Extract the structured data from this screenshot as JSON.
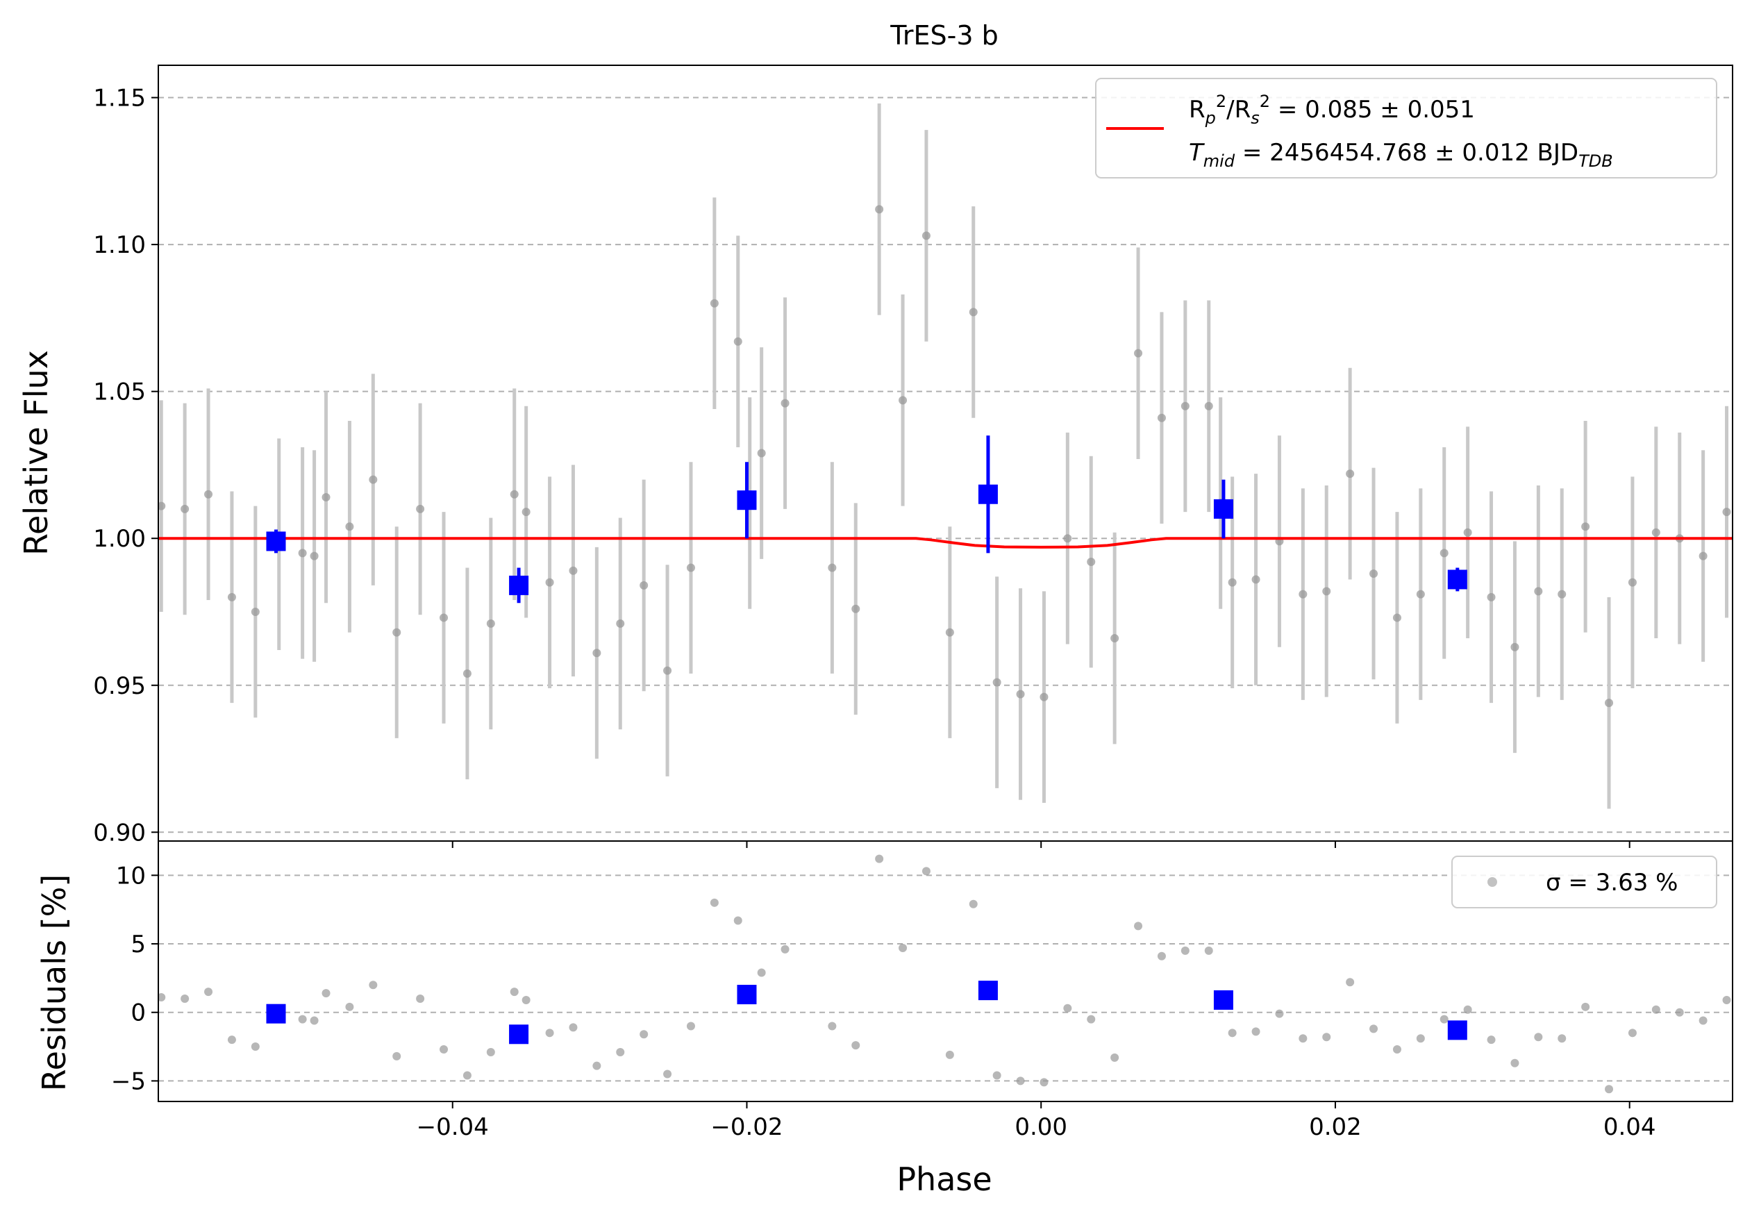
{
  "chart_data": {
    "type": "scatter",
    "title": "TrES-3 b",
    "top_panel": {
      "ylabel": "Relative Flux",
      "ylim": [
        0.897,
        1.161
      ],
      "yticks": [
        0.9,
        0.95,
        1.0,
        1.05,
        1.1,
        1.15
      ],
      "ytick_labels": [
        "0.90",
        "0.95",
        "1.00",
        "1.05",
        "1.10",
        "1.15"
      ],
      "grid": "horizontal dashed",
      "legend": {
        "placement": "top-right",
        "line1": "R_p^2/R_s^2 = 0.085 ± 0.051",
        "line2": "T_mid = 2456454.768 ± 0.012 BJD_TDB",
        "line_color": "#ff0000"
      }
    },
    "bottom_panel": {
      "ylabel": "Residuals [%]",
      "ylim": [
        -6.5,
        12.5
      ],
      "yticks": [
        -5,
        0,
        5,
        10
      ],
      "ytick_labels": [
        "−5",
        "0",
        "5",
        "10"
      ],
      "legend": {
        "placement": "top-right",
        "label": "σ = 3.63 %"
      }
    },
    "xlabel": "Phase",
    "xlim": [
      -0.06,
      0.047
    ],
    "xticks": [
      -0.04,
      -0.02,
      0.0,
      0.02,
      0.04
    ],
    "xtick_labels": [
      "−0.04",
      "−0.02",
      "0.00",
      "0.02",
      "0.04"
    ],
    "colors": {
      "raw": "#999999",
      "raw_err": "#c8c8c8",
      "binned": "#0000ff",
      "model": "#ff0000",
      "grid": "#b0b0b0"
    },
    "raw_points": [
      {
        "x": -0.0598,
        "y": 1.011,
        "e": 0.036
      },
      {
        "x": -0.0582,
        "y": 1.01,
        "e": 0.036
      },
      {
        "x": -0.0566,
        "y": 1.015,
        "e": 0.036
      },
      {
        "x": -0.055,
        "y": 0.98,
        "e": 0.036
      },
      {
        "x": -0.0534,
        "y": 0.975,
        "e": 0.036
      },
      {
        "x": -0.0518,
        "y": 0.998,
        "e": 0.036
      },
      {
        "x": -0.0502,
        "y": 0.995,
        "e": 0.036
      },
      {
        "x": -0.0494,
        "y": 0.994,
        "e": 0.036
      },
      {
        "x": -0.0486,
        "y": 1.014,
        "e": 0.036
      },
      {
        "x": -0.047,
        "y": 1.004,
        "e": 0.036
      },
      {
        "x": -0.0454,
        "y": 1.02,
        "e": 0.036
      },
      {
        "x": -0.0438,
        "y": 0.968,
        "e": 0.036
      },
      {
        "x": -0.0422,
        "y": 1.01,
        "e": 0.036
      },
      {
        "x": -0.0406,
        "y": 0.973,
        "e": 0.036
      },
      {
        "x": -0.039,
        "y": 0.954,
        "e": 0.036
      },
      {
        "x": -0.0374,
        "y": 0.971,
        "e": 0.036
      },
      {
        "x": -0.0358,
        "y": 1.015,
        "e": 0.036
      },
      {
        "x": -0.035,
        "y": 1.009,
        "e": 0.036
      },
      {
        "x": -0.0334,
        "y": 0.985,
        "e": 0.036
      },
      {
        "x": -0.0318,
        "y": 0.989,
        "e": 0.036
      },
      {
        "x": -0.0302,
        "y": 0.961,
        "e": 0.036
      },
      {
        "x": -0.0286,
        "y": 0.971,
        "e": 0.036
      },
      {
        "x": -0.027,
        "y": 0.984,
        "e": 0.036
      },
      {
        "x": -0.0254,
        "y": 0.955,
        "e": 0.036
      },
      {
        "x": -0.0238,
        "y": 0.99,
        "e": 0.036
      },
      {
        "x": -0.0222,
        "y": 1.08,
        "e": 0.036
      },
      {
        "x": -0.0206,
        "y": 1.067,
        "e": 0.036
      },
      {
        "x": -0.0198,
        "y": 1.012,
        "e": 0.036
      },
      {
        "x": -0.019,
        "y": 1.029,
        "e": 0.036
      },
      {
        "x": -0.0174,
        "y": 1.046,
        "e": 0.036
      },
      {
        "x": -0.0142,
        "y": 0.99,
        "e": 0.036
      },
      {
        "x": -0.0126,
        "y": 0.976,
        "e": 0.036
      },
      {
        "x": -0.011,
        "y": 1.112,
        "e": 0.036
      },
      {
        "x": -0.0094,
        "y": 1.047,
        "e": 0.036
      },
      {
        "x": -0.0078,
        "y": 1.103,
        "e": 0.036
      },
      {
        "x": -0.0062,
        "y": 0.968,
        "e": 0.036
      },
      {
        "x": -0.0046,
        "y": 1.077,
        "e": 0.036
      },
      {
        "x": -0.003,
        "y": 0.951,
        "e": 0.036
      },
      {
        "x": -0.0014,
        "y": 0.947,
        "e": 0.036
      },
      {
        "x": 0.0002,
        "y": 0.946,
        "e": 0.036
      },
      {
        "x": 0.0018,
        "y": 1.0,
        "e": 0.036
      },
      {
        "x": 0.0034,
        "y": 0.992,
        "e": 0.036
      },
      {
        "x": 0.005,
        "y": 0.966,
        "e": 0.036
      },
      {
        "x": 0.0066,
        "y": 1.063,
        "e": 0.036
      },
      {
        "x": 0.0082,
        "y": 1.041,
        "e": 0.036
      },
      {
        "x": 0.0098,
        "y": 1.045,
        "e": 0.036
      },
      {
        "x": 0.0114,
        "y": 1.045,
        "e": 0.036
      },
      {
        "x": 0.0122,
        "y": 1.012,
        "e": 0.036
      },
      {
        "x": 0.013,
        "y": 0.985,
        "e": 0.036
      },
      {
        "x": 0.0146,
        "y": 0.986,
        "e": 0.036
      },
      {
        "x": 0.0162,
        "y": 0.999,
        "e": 0.036
      },
      {
        "x": 0.0178,
        "y": 0.981,
        "e": 0.036
      },
      {
        "x": 0.0194,
        "y": 0.982,
        "e": 0.036
      },
      {
        "x": 0.021,
        "y": 1.022,
        "e": 0.036
      },
      {
        "x": 0.0226,
        "y": 0.988,
        "e": 0.036
      },
      {
        "x": 0.0242,
        "y": 0.973,
        "e": 0.036
      },
      {
        "x": 0.0258,
        "y": 0.981,
        "e": 0.036
      },
      {
        "x": 0.0274,
        "y": 0.995,
        "e": 0.036
      },
      {
        "x": 0.029,
        "y": 1.002,
        "e": 0.036
      },
      {
        "x": 0.0306,
        "y": 0.98,
        "e": 0.036
      },
      {
        "x": 0.0322,
        "y": 0.963,
        "e": 0.036
      },
      {
        "x": 0.0338,
        "y": 0.982,
        "e": 0.036
      },
      {
        "x": 0.0354,
        "y": 0.981,
        "e": 0.036
      },
      {
        "x": 0.037,
        "y": 1.004,
        "e": 0.036
      },
      {
        "x": 0.0386,
        "y": 0.944,
        "e": 0.036
      },
      {
        "x": 0.0402,
        "y": 0.985,
        "e": 0.036
      },
      {
        "x": 0.0418,
        "y": 1.002,
        "e": 0.036
      },
      {
        "x": 0.0434,
        "y": 1.0,
        "e": 0.036
      },
      {
        "x": 0.045,
        "y": 0.994,
        "e": 0.036
      },
      {
        "x": 0.0466,
        "y": 1.009,
        "e": 0.036
      }
    ],
    "binned_points": [
      {
        "x": -0.052,
        "y": 0.999,
        "e": 0.004
      },
      {
        "x": -0.0355,
        "y": 0.984,
        "e": 0.006
      },
      {
        "x": -0.02,
        "y": 1.013,
        "e": 0.013
      },
      {
        "x": -0.0036,
        "y": 1.015,
        "e": 0.02
      },
      {
        "x": 0.0124,
        "y": 1.01,
        "e": 0.01
      },
      {
        "x": 0.0283,
        "y": 0.986,
        "e": 0.004
      }
    ],
    "model_curve": [
      {
        "x": -0.06,
        "y": 1.0
      },
      {
        "x": -0.0085,
        "y": 1.0
      },
      {
        "x": -0.0075,
        "y": 0.9995
      },
      {
        "x": -0.006,
        "y": 0.9985
      },
      {
        "x": -0.0045,
        "y": 0.9976
      },
      {
        "x": -0.0025,
        "y": 0.9971
      },
      {
        "x": 0.0,
        "y": 0.997
      },
      {
        "x": 0.0025,
        "y": 0.9971
      },
      {
        "x": 0.0045,
        "y": 0.9976
      },
      {
        "x": 0.006,
        "y": 0.9985
      },
      {
        "x": 0.0075,
        "y": 0.9995
      },
      {
        "x": 0.0085,
        "y": 1.0
      },
      {
        "x": 0.047,
        "y": 1.0
      }
    ],
    "residual_points": [
      {
        "x": -0.0598,
        "y": 1.1
      },
      {
        "x": -0.0582,
        "y": 1.0
      },
      {
        "x": -0.0566,
        "y": 1.5
      },
      {
        "x": -0.055,
        "y": -2.0
      },
      {
        "x": -0.0534,
        "y": -2.5
      },
      {
        "x": -0.0502,
        "y": -0.5
      },
      {
        "x": -0.0494,
        "y": -0.6
      },
      {
        "x": -0.0486,
        "y": 1.4
      },
      {
        "x": -0.047,
        "y": 0.4
      },
      {
        "x": -0.0454,
        "y": 2.0
      },
      {
        "x": -0.0438,
        "y": -3.2
      },
      {
        "x": -0.0422,
        "y": 1.0
      },
      {
        "x": -0.0406,
        "y": -2.7
      },
      {
        "x": -0.039,
        "y": -4.6
      },
      {
        "x": -0.0374,
        "y": -2.9
      },
      {
        "x": -0.0358,
        "y": 1.5
      },
      {
        "x": -0.035,
        "y": 0.9
      },
      {
        "x": -0.0334,
        "y": -1.5
      },
      {
        "x": -0.0318,
        "y": -1.1
      },
      {
        "x": -0.0302,
        "y": -3.9
      },
      {
        "x": -0.0286,
        "y": -2.9
      },
      {
        "x": -0.027,
        "y": -1.6
      },
      {
        "x": -0.0254,
        "y": -4.5
      },
      {
        "x": -0.0238,
        "y": -1.0
      },
      {
        "x": -0.0222,
        "y": 8.0
      },
      {
        "x": -0.0206,
        "y": 6.7
      },
      {
        "x": -0.019,
        "y": 2.9
      },
      {
        "x": -0.0174,
        "y": 4.6
      },
      {
        "x": -0.0142,
        "y": -1.0
      },
      {
        "x": -0.0126,
        "y": -2.4
      },
      {
        "x": -0.011,
        "y": 11.2
      },
      {
        "x": -0.0094,
        "y": 4.7
      },
      {
        "x": -0.0078,
        "y": 10.3
      },
      {
        "x": -0.0062,
        "y": -3.1
      },
      {
        "x": -0.0046,
        "y": 7.9
      },
      {
        "x": -0.003,
        "y": -4.6
      },
      {
        "x": -0.0014,
        "y": -5.0
      },
      {
        "x": 0.0002,
        "y": -5.1
      },
      {
        "x": 0.0018,
        "y": 0.3
      },
      {
        "x": 0.0034,
        "y": -0.5
      },
      {
        "x": 0.005,
        "y": -3.3
      },
      {
        "x": 0.0066,
        "y": 6.3
      },
      {
        "x": 0.0082,
        "y": 4.1
      },
      {
        "x": 0.0098,
        "y": 4.5
      },
      {
        "x": 0.0114,
        "y": 4.5
      },
      {
        "x": 0.013,
        "y": -1.5
      },
      {
        "x": 0.0146,
        "y": -1.4
      },
      {
        "x": 0.0162,
        "y": -0.1
      },
      {
        "x": 0.0178,
        "y": -1.9
      },
      {
        "x": 0.0194,
        "y": -1.8
      },
      {
        "x": 0.021,
        "y": 2.2
      },
      {
        "x": 0.0226,
        "y": -1.2
      },
      {
        "x": 0.0242,
        "y": -2.7
      },
      {
        "x": 0.0258,
        "y": -1.9
      },
      {
        "x": 0.0274,
        "y": -0.5
      },
      {
        "x": 0.029,
        "y": 0.2
      },
      {
        "x": 0.0306,
        "y": -2.0
      },
      {
        "x": 0.0322,
        "y": -3.7
      },
      {
        "x": 0.0338,
        "y": -1.8
      },
      {
        "x": 0.0354,
        "y": -1.9
      },
      {
        "x": 0.037,
        "y": 0.4
      },
      {
        "x": 0.0386,
        "y": -5.6
      },
      {
        "x": 0.0402,
        "y": -1.5
      },
      {
        "x": 0.0418,
        "y": 0.2
      },
      {
        "x": 0.0434,
        "y": 0.0
      },
      {
        "x": 0.045,
        "y": -0.6
      },
      {
        "x": 0.0466,
        "y": 0.9
      }
    ],
    "residual_binned": [
      {
        "x": -0.052,
        "y": -0.1
      },
      {
        "x": -0.0355,
        "y": -1.6
      },
      {
        "x": -0.02,
        "y": 1.3
      },
      {
        "x": -0.0036,
        "y": 1.6
      },
      {
        "x": 0.0124,
        "y": 0.9
      },
      {
        "x": 0.0283,
        "y": -1.3
      }
    ]
  }
}
